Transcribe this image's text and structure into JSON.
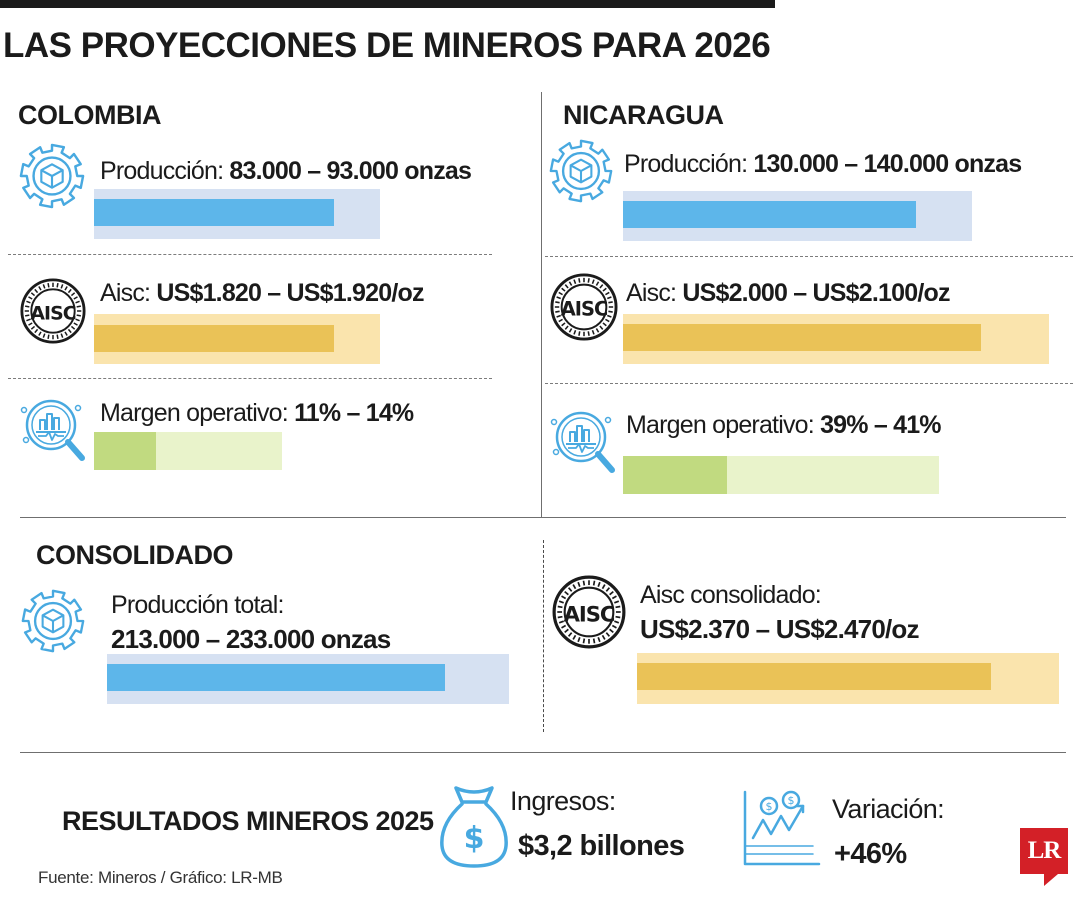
{
  "title": "LAS PROYECCIONES DE MINEROS PARA 2026",
  "colors": {
    "blue": "#5db6ea",
    "blue_bg": "#d6e1f2",
    "gold": "#eac257",
    "gold_bg": "#fae4ad",
    "green": "#c1da80",
    "green_bg": "#e9f3cb",
    "icon_blue": "#48a9e0",
    "text": "#1b1b1b",
    "logo_red": "#d32027"
  },
  "chart_data": [
    {
      "type": "bar",
      "title": "COLOMBIA",
      "rows": [
        {
          "key": "produccion",
          "label": "Producción:",
          "value_text": "83.000 – 93.000 onzas",
          "icon": "gear-cube-icon",
          "fill_fraction": 0.84,
          "color": "blue"
        },
        {
          "key": "aisc",
          "label": "Aisc:",
          "value_text": "US$1.820 – US$1.920/oz",
          "icon": "aisc-seal-icon",
          "fill_fraction": 0.84,
          "color": "gold"
        },
        {
          "key": "margen",
          "label": "Margen operativo:",
          "value_text": "11% – 14%",
          "icon": "magnifier-chart-icon",
          "fill_fraction": 0.33,
          "color": "green"
        }
      ]
    },
    {
      "type": "bar",
      "title": "NICARAGUA",
      "rows": [
        {
          "key": "produccion",
          "label": "Producción:",
          "value_text": "130.000 – 140.000 onzas",
          "icon": "gear-cube-icon",
          "fill_fraction": 0.84,
          "color": "blue"
        },
        {
          "key": "aisc",
          "label": "Aisc:",
          "value_text": "US$2.000 – US$2.100/oz",
          "icon": "aisc-seal-icon",
          "fill_fraction": 0.84,
          "color": "gold"
        },
        {
          "key": "margen",
          "label": "Margen operativo:",
          "value_text": "39% – 41%",
          "icon": "magnifier-chart-icon",
          "fill_fraction": 0.33,
          "color": "green"
        }
      ]
    },
    {
      "type": "bar",
      "title": "CONSOLIDADO",
      "rows": [
        {
          "key": "produccion_total",
          "label": "Producción total:",
          "value_text": "213.000 – 233.000 onzas",
          "icon": "gear-cube-icon",
          "fill_fraction": 0.84,
          "color": "blue"
        },
        {
          "key": "aisc_consolidado",
          "label": "Aisc consolidado:",
          "value_text": "US$2.370 – US$2.470/oz",
          "icon": "aisc-seal-icon",
          "fill_fraction": 0.84,
          "color": "gold"
        }
      ]
    }
  ],
  "seal_text": {
    "ring_top": "AMERICAN INSTITUTE OF STEEL CONSTRUCTION",
    "center": "AISC",
    "founded": "FOUNDED 1921"
  },
  "results": {
    "title": "RESULTADOS MINEROS 2025",
    "ingresos": {
      "label": "Ingresos:",
      "value": "$3,2 billones",
      "icon": "money-bag-icon"
    },
    "variacion": {
      "label": "Variación:",
      "value": "+46%",
      "icon": "growth-chart-icon"
    }
  },
  "source": "Fuente: Mineros / Gráfico: LR-MB",
  "logo": "LR"
}
